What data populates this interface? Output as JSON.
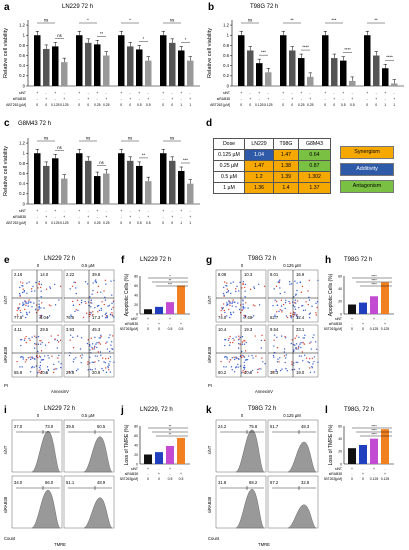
{
  "panels": {
    "a": {
      "letter": "a",
      "title": "LN229 72 h"
    },
    "b": {
      "letter": "b",
      "title": "T98G 72 h"
    },
    "c": {
      "letter": "c",
      "title": "G8M43 72 h"
    },
    "d": {
      "letter": "d"
    },
    "e": {
      "letter": "e",
      "title": "LN229 72 h",
      "doses": [
        "0",
        "0.5 µM"
      ],
      "row_labels": [
        "siNT",
        "siRAB38"
      ],
      "xlabel": "AnnexinV",
      "ylabel": "PI",
      "quads": [
        [
          "2.16",
          "14.0",
          "77.8",
          "6.04"
        ],
        [
          "2.22",
          "39.8",
          "76.5",
          "17.3"
        ],
        [
          "4.11",
          "29.5",
          "55.9",
          "10.5"
        ],
        [
          "3.93",
          "45.3",
          "29.8",
          "20.9"
        ]
      ]
    },
    "f": {
      "letter": "f",
      "title": "LN229 72 h",
      "ylabel": "Apoptotic Cells (%)"
    },
    "g": {
      "letter": "g",
      "title": "T98G 72 h",
      "doses": [
        "0",
        "0.125 µM"
      ],
      "row_labels": [
        "siNT",
        "siRAB38"
      ],
      "xlabel": "AnnexinV",
      "ylabel": "PI",
      "quads": [
        [
          "8.08",
          "10.3",
          "74.0",
          "7.60"
        ],
        [
          "8.01",
          "16.9",
          "62.7",
          "12.4"
        ],
        [
          "10.4",
          "19.3",
          "60.2",
          "10.0"
        ],
        [
          "9.54",
          "33.1",
          "38.3",
          "19.0"
        ]
      ]
    },
    "h": {
      "letter": "h",
      "title": "T98G 72 h",
      "ylabel": "Apoptotic Cells (%)"
    },
    "i": {
      "letter": "i",
      "title": "LN229 72 h",
      "doses": [
        "0",
        "0.5 µM"
      ],
      "row_labels": [
        "siNT",
        "siRAB38"
      ],
      "xlabel": "TMRE",
      "ylabel": "Count",
      "vals": [
        [
          "27.0",
          "73.0"
        ],
        [
          "39.5",
          "60.5"
        ],
        [
          "34.0",
          "66.0"
        ],
        [
          "51.1",
          "48.9"
        ]
      ]
    },
    "j": {
      "letter": "j",
      "title": "LN229, 72 h",
      "ylabel": "Loss of TMRE (%)"
    },
    "k": {
      "letter": "k",
      "title": "T98G 72 h",
      "doses": [
        "0",
        "0.125 µM"
      ],
      "row_labels": [
        "siNT",
        "siRAB38"
      ],
      "xlabel": "TMRE",
      "ylabel": "Count",
      "vals": [
        [
          "24.2",
          "75.8"
        ],
        [
          "51.7",
          "48.3"
        ],
        [
          "31.8",
          "68.2"
        ],
        [
          "67.2",
          "32.8"
        ]
      ]
    },
    "l": {
      "letter": "l",
      "title": "T98G, 72 h",
      "ylabel": "Loss of TMRE (%)"
    }
  },
  "bar_axes": {
    "ylabel": "Relative cell viability",
    "yticks": [
      "0",
      "0.2",
      "0.4",
      "0.6",
      "0.8",
      "1",
      "1.2"
    ],
    "row_sint": "siNT",
    "row_sirab": "siRAB38",
    "row_abt": "ABT263 [µM]"
  },
  "small_bar_rows": {
    "sint": "siNT",
    "sirab": "siRAB38",
    "abt_lnj": "ABT263[µM]",
    "abt_t98": "ABT263[µM]"
  },
  "table": {
    "header": [
      "Dose",
      "LN229",
      "T98G",
      "G8M43"
    ],
    "rows": [
      [
        "0.125 µM",
        "1.04",
        "1.47",
        "0.64"
      ],
      [
        "0.25 µM",
        "1.47",
        "1.38",
        "0.87"
      ],
      [
        "0.5 µM",
        "1.2",
        "1.39",
        "1.302"
      ],
      [
        "1 µM",
        "1.36",
        "1.4",
        "1.37"
      ]
    ],
    "colors": [
      [
        "#2f5aa8",
        "#f5a800",
        "#7ac143"
      ],
      [
        "#f5a800",
        "#f5a800",
        "#7ac143"
      ],
      [
        "#f5a800",
        "#f5a800",
        "#f5a800"
      ],
      [
        "#f5a800",
        "#f5a800",
        "#f5a800"
      ]
    ],
    "legend": [
      "Synergism",
      "Additivity",
      "Antagonism"
    ],
    "legend_colors": [
      "#f5a800",
      "#2f5aa8",
      "#7ac143"
    ]
  },
  "chart_data": [
    {
      "type": "bar",
      "id": "a",
      "groups": 4,
      "doses": [
        [
          "0",
          "0.125"
        ],
        [
          "0",
          "0.25"
        ],
        [
          "0",
          "0.5"
        ],
        [
          "0",
          "1"
        ]
      ],
      "values": [
        [
          1.0,
          0.73,
          0.78,
          0.47
        ],
        [
          1.0,
          0.85,
          0.82,
          0.6
        ],
        [
          1.0,
          0.78,
          0.72,
          0.5
        ],
        [
          1.0,
          0.85,
          0.7,
          0.5
        ]
      ],
      "sig": [
        [
          "ns",
          "ns"
        ],
        [
          "*",
          "**"
        ],
        [
          "*",
          "*"
        ],
        [
          "ns",
          "*"
        ]
      ],
      "ylim": [
        0,
        1.3
      ]
    },
    {
      "type": "bar",
      "id": "b",
      "groups": 4,
      "doses": [
        [
          "0",
          "0.125"
        ],
        [
          "0",
          "0.25"
        ],
        [
          "0",
          "0.5"
        ],
        [
          "0",
          "1"
        ]
      ],
      "values": [
        [
          1.0,
          0.7,
          0.45,
          0.27
        ],
        [
          1.0,
          0.7,
          0.55,
          0.18
        ],
        [
          1.0,
          0.55,
          0.5,
          0.1
        ],
        [
          1.0,
          0.6,
          0.35,
          0.05
        ]
      ],
      "sig": [
        [
          "ns",
          "***"
        ],
        [
          "**",
          "****"
        ],
        [
          "***",
          "****"
        ],
        [
          "**",
          "****"
        ]
      ],
      "ylim": [
        0,
        1.3
      ]
    },
    {
      "type": "bar",
      "id": "c",
      "groups": 4,
      "doses": [
        [
          "0",
          "0.125"
        ],
        [
          "0",
          "0.25"
        ],
        [
          "0",
          "0.5"
        ],
        [
          "0",
          "1"
        ]
      ],
      "values": [
        [
          1.0,
          0.75,
          0.9,
          0.5
        ],
        [
          1.0,
          0.85,
          0.55,
          0.6
        ],
        [
          1.0,
          0.85,
          0.75,
          0.45
        ],
        [
          1.0,
          0.85,
          0.65,
          0.4
        ]
      ],
      "sig": [
        [
          "ns",
          "ns"
        ],
        [
          "ns",
          "ns"
        ],
        [
          "ns",
          "**"
        ],
        [
          "ns",
          "***"
        ]
      ],
      "ylim": [
        0,
        1.3
      ]
    },
    {
      "type": "bar",
      "id": "f",
      "values": [
        10,
        15,
        25,
        60
      ],
      "ylim": [
        0,
        80
      ],
      "yticks": [
        "0",
        "20",
        "40",
        "60",
        "80"
      ],
      "sint": [
        "+",
        "-",
        "+",
        "-"
      ],
      "sirab": [
        "-",
        "+",
        "-",
        "+"
      ],
      "abt": [
        "0",
        "0",
        "0.5",
        "0.5"
      ],
      "sig": [
        "*",
        "**",
        "***"
      ]
    },
    {
      "type": "bar",
      "id": "h",
      "values": [
        15,
        18,
        28,
        50
      ],
      "ylim": [
        0,
        60
      ],
      "yticks": [
        "0",
        "20",
        "40",
        "60"
      ],
      "sint": [
        "+",
        "-",
        "+",
        "-"
      ],
      "sirab": [
        "-",
        "+",
        "-",
        "+"
      ],
      "abt": [
        "0",
        "0",
        "0.125",
        "0.125"
      ],
      "sig": [
        "****",
        "****",
        "****"
      ]
    },
    {
      "type": "bar",
      "id": "j",
      "values": [
        20,
        25,
        38,
        55
      ],
      "ylim": [
        0,
        80
      ],
      "yticks": [
        "0",
        "20",
        "40",
        "60",
        "80"
      ],
      "sint": [
        "+",
        "-",
        "+",
        "-"
      ],
      "sirab": [
        "-",
        "+",
        "-",
        "+"
      ],
      "abt": [
        "0",
        "0",
        "0.5",
        "0.5"
      ],
      "sig": [
        "**",
        "**",
        "**"
      ]
    },
    {
      "type": "bar",
      "id": "l",
      "values": [
        25,
        30,
        40,
        55
      ],
      "ylim": [
        0,
        60
      ],
      "yticks": [
        "0",
        "20",
        "40",
        "60"
      ],
      "sint": [
        "+",
        "-",
        "+",
        "-"
      ],
      "sirab": [
        "-",
        "+",
        "-",
        "+"
      ],
      "abt": [
        "0",
        "0",
        "0.125",
        "0.125"
      ],
      "sig": [
        "****",
        "****",
        "****"
      ]
    }
  ]
}
